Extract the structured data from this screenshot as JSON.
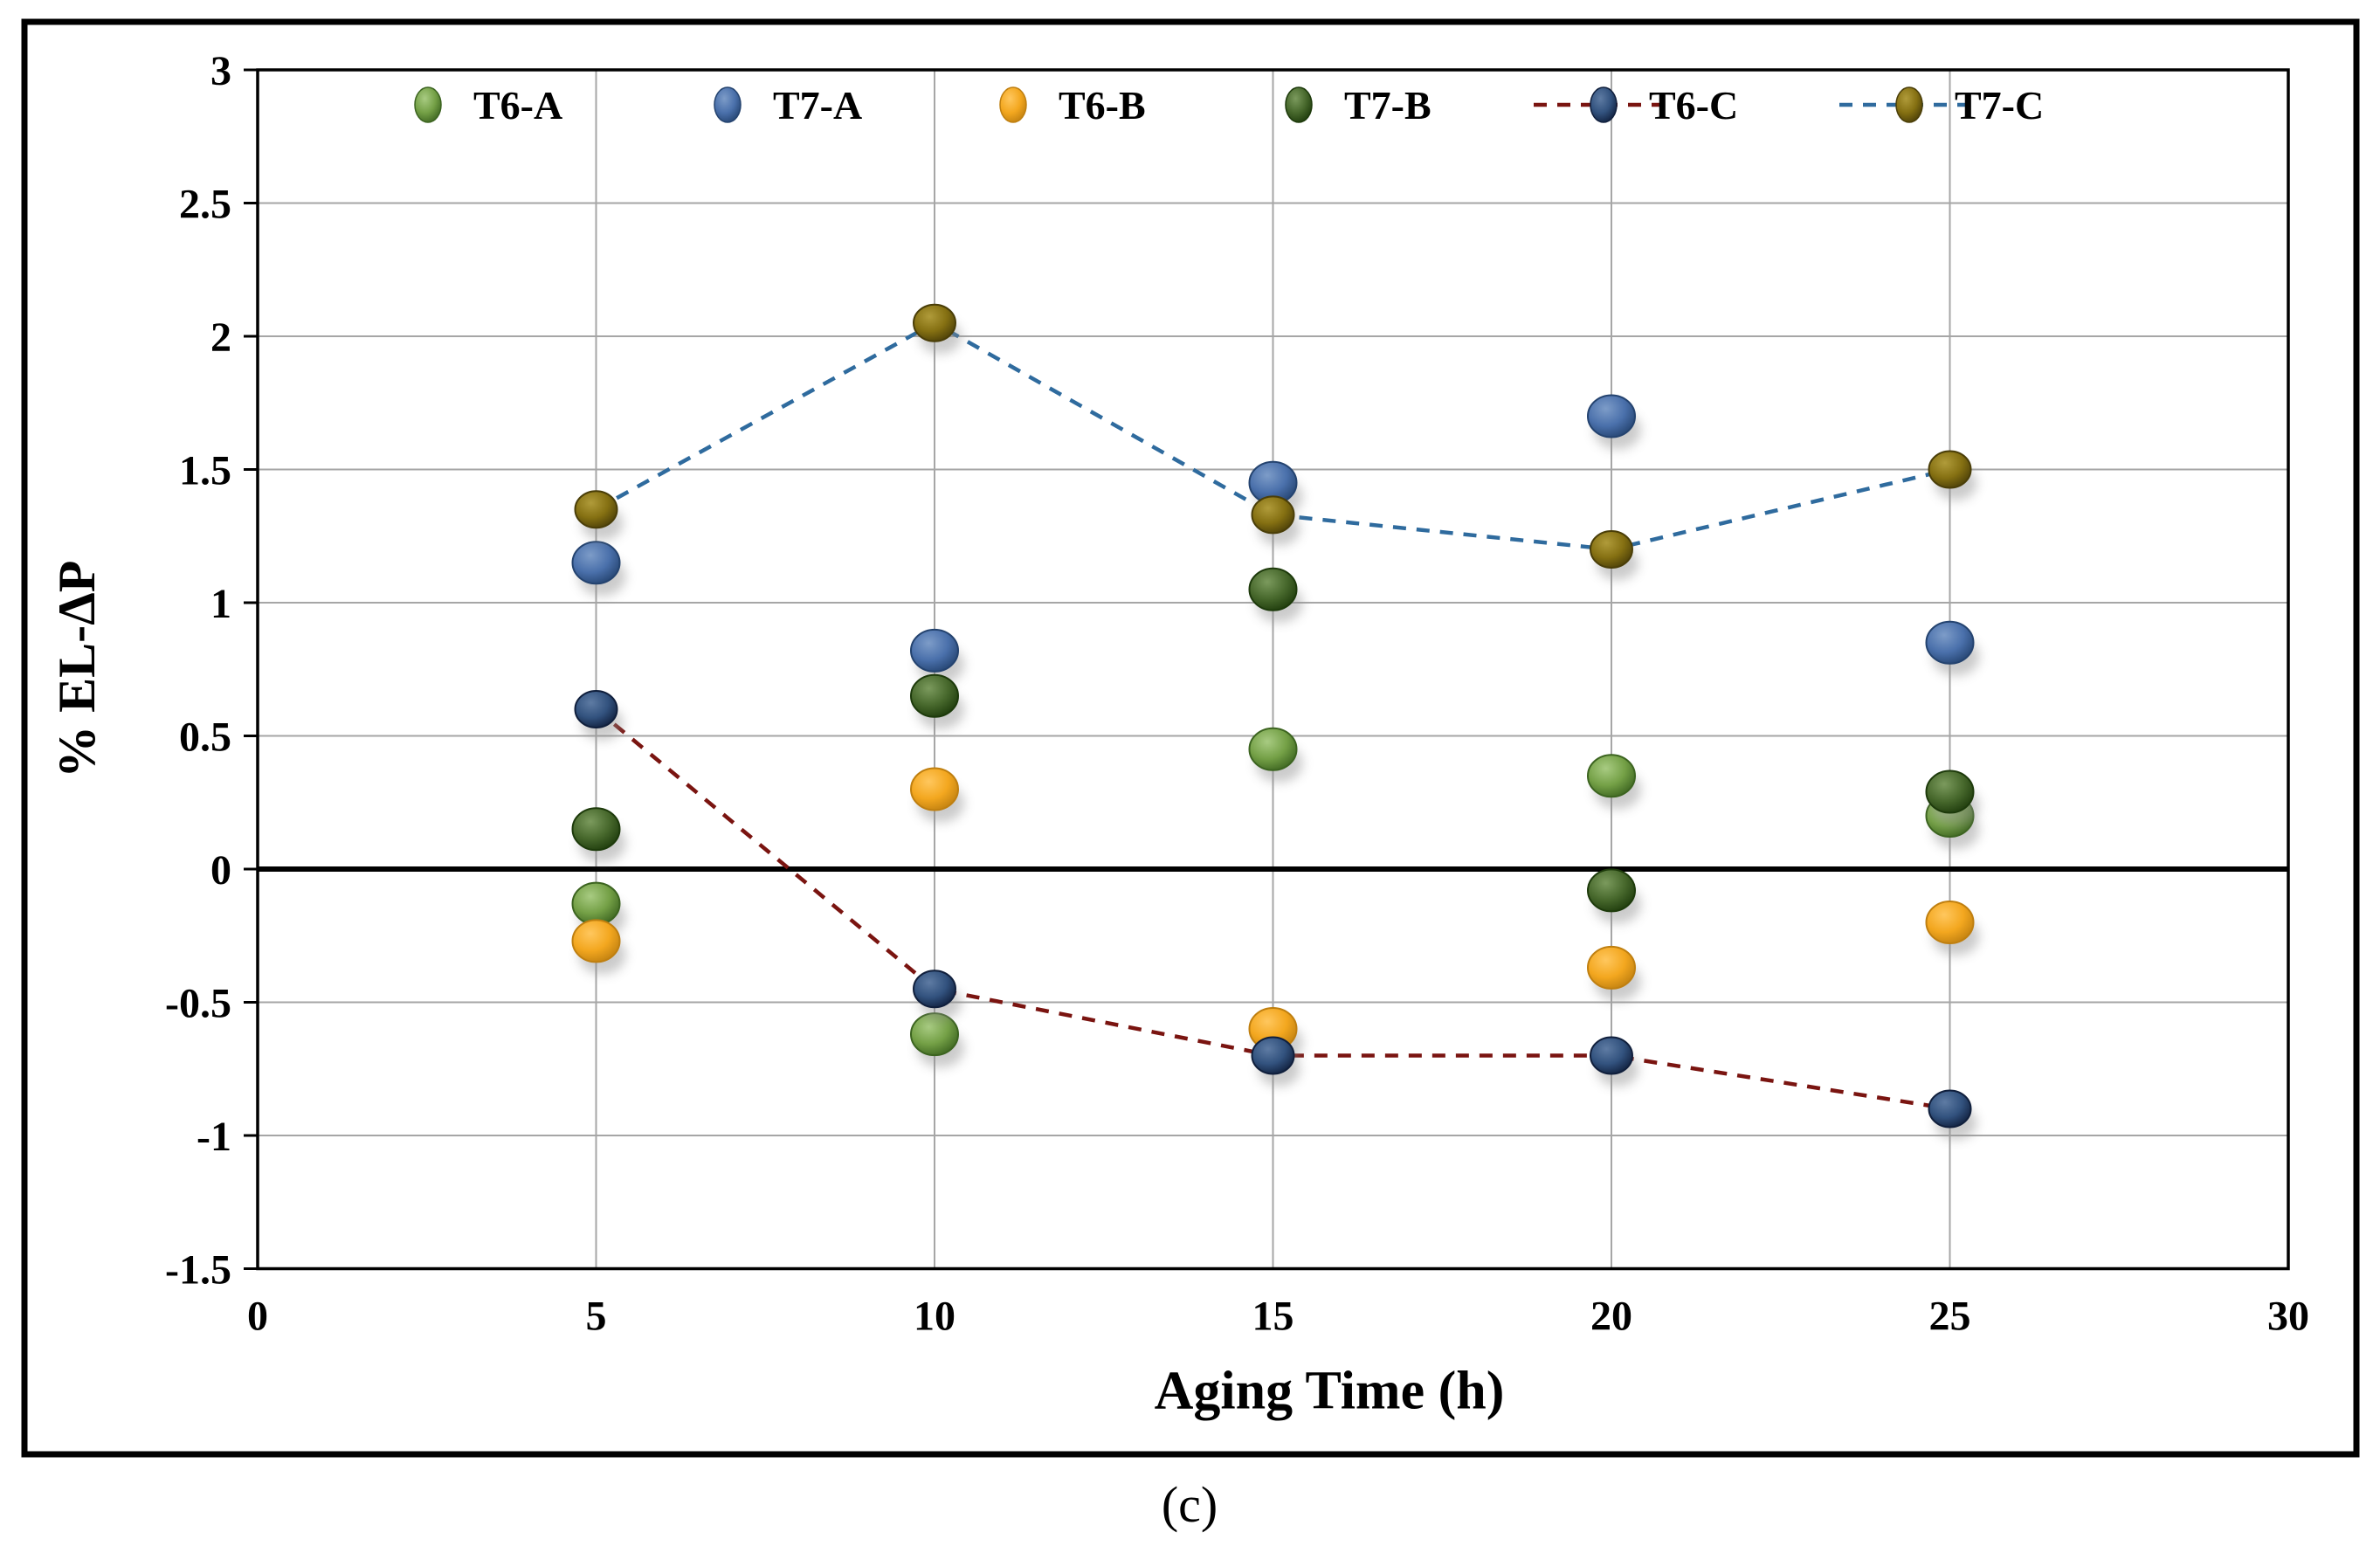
{
  "figure": {
    "caption": "(c)",
    "frame_color": "#000000",
    "background": "#ffffff"
  },
  "chart_data": {
    "type": "scatter",
    "title": "",
    "xlabel": "Aging Time (h)",
    "ylabel": "% EL-ΔP",
    "xlim": [
      0,
      30
    ],
    "ylim": [
      -1.5,
      3
    ],
    "grid": true,
    "x_ticks": [
      "0",
      "5",
      "10",
      "15",
      "20",
      "25",
      "30"
    ],
    "x_tick_values": [
      0,
      5,
      10,
      15,
      20,
      25,
      30
    ],
    "y_ticks": [
      "3",
      "2.5",
      "2",
      "1.5",
      "1",
      "0.5",
      "0",
      "-0.5",
      "-1",
      "-1.5"
    ],
    "y_tick_values": [
      3,
      2.5,
      2,
      1.5,
      1,
      0.5,
      0,
      -0.5,
      -1,
      -1.5
    ],
    "legend_position": "top-inside",
    "x": [
      5,
      10,
      15,
      20,
      25
    ],
    "series": [
      {
        "name": "T6-A",
        "values": [
          -0.13,
          -0.62,
          0.45,
          0.35,
          0.2
        ],
        "marker_colors": {
          "light": "#a8cb82",
          "mid": "#74a046",
          "edge": "#3c6420"
        },
        "line_color": null
      },
      {
        "name": "T7-A",
        "values": [
          1.15,
          0.82,
          1.45,
          1.7,
          0.85
        ],
        "marker_colors": {
          "light": "#7d9cc8",
          "mid": "#4a70ab",
          "edge": "#24436f"
        },
        "line_color": null
      },
      {
        "name": "T6-B",
        "values": [
          -0.27,
          0.3,
          -0.6,
          -0.37,
          -0.2
        ],
        "marker_colors": {
          "light": "#ffc75e",
          "mid": "#f3a71f",
          "edge": "#bf7f10"
        },
        "line_color": null
      },
      {
        "name": "T7-B",
        "values": [
          0.15,
          0.65,
          1.05,
          -0.08,
          0.29
        ],
        "marker_colors": {
          "light": "#7b9a5d",
          "mid": "#47682c",
          "edge": "#1d3a0b"
        },
        "line_color": null
      },
      {
        "name": "T6-C",
        "values": [
          0.6,
          -0.45,
          -0.7,
          -0.7,
          -0.9
        ],
        "marker_colors": {
          "light": "#5e7ba3",
          "mid": "#32527e",
          "edge": "#101f3c"
        },
        "line_color": "#7a1410",
        "line_style": "dashed"
      },
      {
        "name": "T7-C",
        "values": [
          1.35,
          2.05,
          1.33,
          1.2,
          1.5
        ],
        "marker_colors": {
          "light": "#b09b3a",
          "mid": "#857012",
          "edge": "#4a3e08"
        },
        "line_color": "#2f6b9e",
        "line_style": "dashed"
      }
    ],
    "colors": {
      "gridline": "#a6a6a6",
      "zero_line": "#000000",
      "plot_border": "#000000",
      "text": "#000000"
    }
  }
}
